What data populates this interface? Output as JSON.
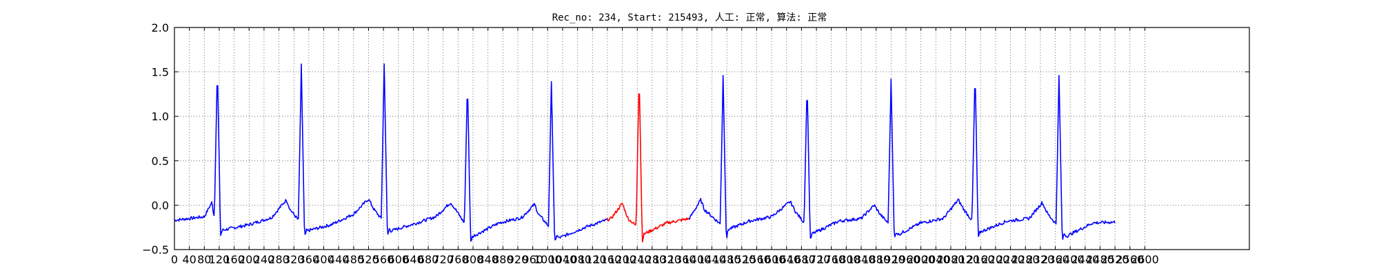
{
  "chart_data": {
    "type": "line",
    "title": "Rec_no: 234, Start: 215493, 人工: 正常, 算法: 正常",
    "xlabel": "",
    "ylabel": "",
    "xlim": [
      0,
      2880
    ],
    "ylim": [
      -0.5,
      2.0
    ],
    "yticks": [
      "2.0",
      "1.5",
      "1.0",
      "0.5",
      "0.0",
      "−0.5"
    ],
    "xtick_step": 40,
    "xtick_max": 2600,
    "grid": true,
    "colors": {
      "normal": "#0000ff",
      "highlight": "#ff0000"
    },
    "highlight_range": [
      1160,
      1380
    ],
    "sample_end": 2520,
    "beats": [
      115,
      340,
      562,
      785,
      1010,
      1245,
      1470,
      1695,
      1920,
      2145,
      2370
    ],
    "peaks": [
      1.56,
      1.59,
      1.59,
      1.4,
      1.39,
      1.47,
      1.46,
      1.38,
      1.42,
      1.53,
      1.46
    ],
    "baseline_points": [
      [
        0,
        -0.17
      ],
      [
        40,
        -0.15
      ],
      [
        80,
        -0.13
      ],
      [
        100,
        0.03
      ],
      [
        105,
        -0.1
      ],
      [
        130,
        -0.28
      ],
      [
        200,
        -0.22
      ],
      [
        260,
        -0.14
      ],
      [
        300,
        0.06
      ],
      [
        310,
        -0.05
      ],
      [
        355,
        -0.29
      ],
      [
        420,
        -0.22
      ],
      [
        480,
        -0.1
      ],
      [
        520,
        0.07
      ],
      [
        535,
        -0.05
      ],
      [
        580,
        -0.29
      ],
      [
        650,
        -0.2
      ],
      [
        700,
        -0.13
      ],
      [
        740,
        0.03
      ],
      [
        755,
        -0.06
      ],
      [
        800,
        -0.35
      ],
      [
        870,
        -0.2
      ],
      [
        930,
        -0.14
      ],
      [
        965,
        0.01
      ],
      [
        975,
        -0.1
      ],
      [
        1030,
        -0.37
      ],
      [
        1100,
        -0.25
      ],
      [
        1170,
        -0.15
      ],
      [
        1200,
        0.02
      ],
      [
        1215,
        -0.15
      ],
      [
        1260,
        -0.32
      ],
      [
        1320,
        -0.2
      ],
      [
        1380,
        -0.15
      ],
      [
        1410,
        0.06
      ],
      [
        1420,
        -0.05
      ],
      [
        1480,
        -0.28
      ],
      [
        1540,
        -0.18
      ],
      [
        1600,
        -0.13
      ],
      [
        1650,
        0.04
      ],
      [
        1665,
        -0.08
      ],
      [
        1710,
        -0.32
      ],
      [
        1780,
        -0.18
      ],
      [
        1840,
        -0.15
      ],
      [
        1875,
        0.0
      ],
      [
        1890,
        -0.1
      ],
      [
        1940,
        -0.33
      ],
      [
        2000,
        -0.2
      ],
      [
        2060,
        -0.15
      ],
      [
        2100,
        0.06
      ],
      [
        2115,
        -0.05
      ],
      [
        2160,
        -0.3
      ],
      [
        2230,
        -0.18
      ],
      [
        2290,
        -0.15
      ],
      [
        2325,
        0.03
      ],
      [
        2340,
        -0.1
      ],
      [
        2390,
        -0.35
      ],
      [
        2460,
        -0.2
      ],
      [
        2520,
        -0.19
      ]
    ]
  }
}
